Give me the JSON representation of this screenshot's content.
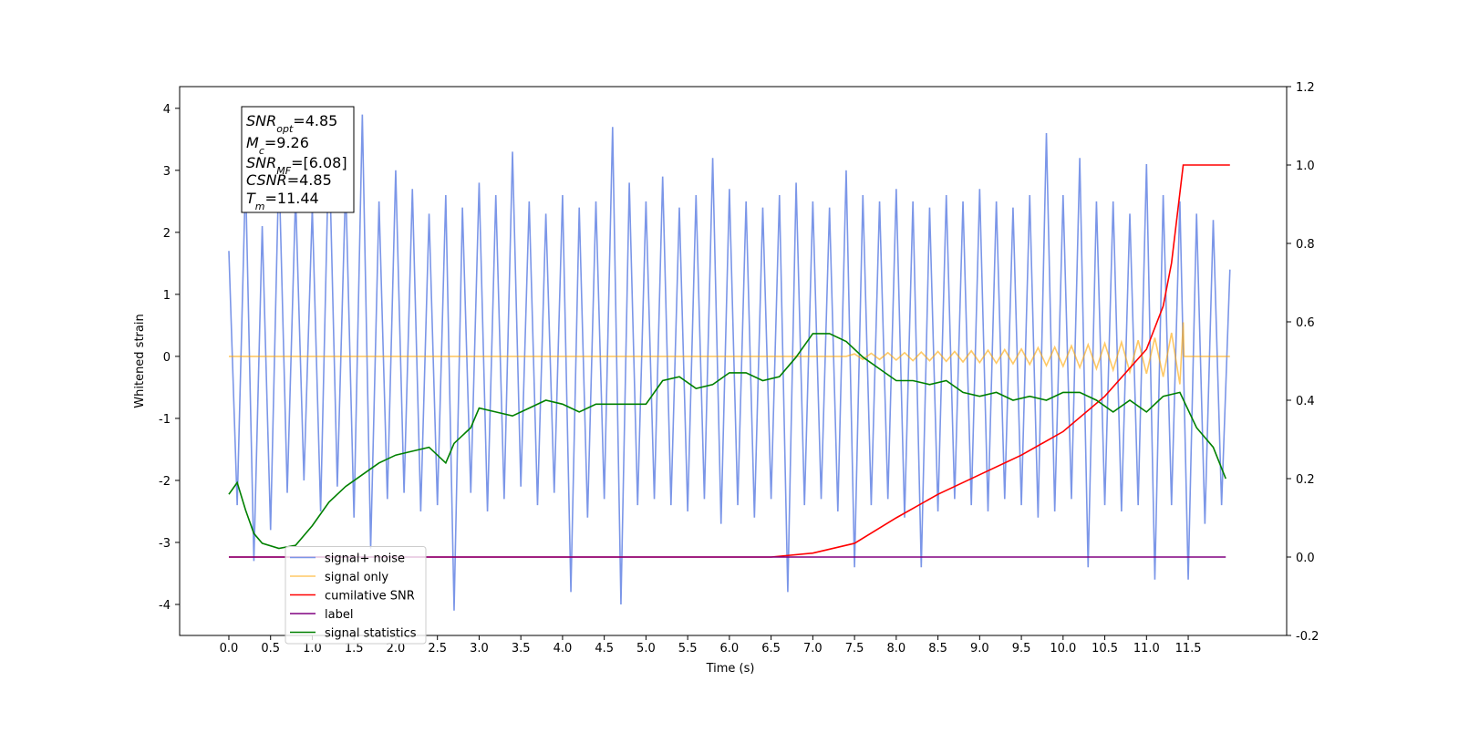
{
  "chart_data": {
    "type": "line",
    "xlabel": "Time (s)",
    "ylabel": "Whitened strain",
    "xlim": [
      -0.59,
      12.68
    ],
    "ylim": [
      -4.5,
      4.35
    ],
    "y2lim": [
      -0.2,
      1.2
    ],
    "xticks": [
      {
        "value": 0,
        "label": "0.0"
      },
      0.5,
      {
        "value": 1,
        "label": "1.0"
      },
      1.5,
      {
        "value": 2,
        "label": "2.0"
      },
      2.5,
      {
        "value": 3,
        "label": "3.0"
      },
      3.5,
      {
        "value": 4,
        "label": "4.0"
      },
      4.5,
      {
        "value": 5,
        "label": "5.0"
      },
      5.5,
      {
        "value": 6,
        "label": "6.0"
      },
      6.5,
      {
        "value": 7,
        "label": "7.0"
      },
      7.5,
      {
        "value": 8,
        "label": "8.0"
      },
      8.5,
      {
        "value": 9,
        "label": "9.0"
      },
      9.5,
      {
        "value": 10,
        "label": "10.0"
      },
      10.5,
      {
        "value": 11,
        "label": "11.0"
      },
      11.5
    ],
    "yticks": [
      -4,
      -3,
      -2,
      -1,
      0,
      1,
      2,
      3,
      4
    ],
    "y2ticks": [
      -0.2,
      {
        "value": 0,
        "label": "0.0"
      },
      0.2,
      0.4,
      0.6,
      0.8,
      {
        "value": 1,
        "label": "1.0"
      },
      1.2
    ],
    "legend_loc": "lower left",
    "annotations": [
      {
        "symbol": "SNR",
        "subscript": "opt",
        "text": "=4.85"
      },
      {
        "symbol": "M",
        "subscript": "c",
        "text": "=9.26"
      },
      {
        "symbol": "SNR",
        "subscript": "MF",
        "text": "=[6.08]"
      },
      {
        "symbol": "CSNR",
        "text": "=4.85"
      },
      {
        "symbol": "T",
        "subscript": "m",
        "text": "=11.44"
      }
    ],
    "series": [
      {
        "name": "signal+ noise",
        "color": "#7b96e8",
        "x": [
          0,
          0.1,
          0.2,
          0.3,
          0.4,
          0.5,
          0.6,
          0.7,
          0.8,
          0.9,
          1,
          1.1,
          1.2,
          1.3,
          1.4,
          1.5,
          1.6,
          1.7,
          1.8,
          1.9,
          2,
          2.1,
          2.2,
          2.3,
          2.4,
          2.5,
          2.6,
          2.7,
          2.8,
          2.9,
          3,
          3.1,
          3.2,
          3.3,
          3.4,
          3.5,
          3.6,
          3.7,
          3.8,
          3.9,
          4,
          4.1,
          4.2,
          4.3,
          4.4,
          4.5,
          4.6,
          4.7,
          4.8,
          4.9,
          5,
          5.1,
          5.2,
          5.3,
          5.4,
          5.5,
          5.6,
          5.7,
          5.8,
          5.9,
          6,
          6.1,
          6.2,
          6.3,
          6.4,
          6.5,
          6.6,
          6.7,
          6.8,
          6.9,
          7,
          7.1,
          7.2,
          7.3,
          7.4,
          7.5,
          7.6,
          7.7,
          7.8,
          7.9,
          8,
          8.1,
          8.2,
          8.3,
          8.4,
          8.5,
          8.6,
          8.7,
          8.8,
          8.9,
          9,
          9.1,
          9.2,
          9.3,
          9.4,
          9.5,
          9.6,
          9.7,
          9.8,
          9.9,
          10,
          10.1,
          10.2,
          10.3,
          10.4,
          10.5,
          10.6,
          10.7,
          10.8,
          10.9,
          11,
          11.1,
          11.2,
          11.3,
          11.4,
          11.5,
          11.6,
          11.7,
          11.8,
          11.9,
          12
        ],
        "values": [
          1.7,
          -2.4,
          2.9,
          -3.3,
          2.1,
          -2.8,
          3.1,
          -2.2,
          2.6,
          -2.0,
          2.4,
          -2.5,
          3.5,
          -2.1,
          2.8,
          -2.6,
          3.9,
          -3.1,
          2.5,
          -2.3,
          3.0,
          -2.2,
          2.7,
          -2.5,
          2.3,
          -2.4,
          2.6,
          -4.1,
          2.4,
          -2.2,
          2.8,
          -2.5,
          2.6,
          -2.3,
          3.3,
          -2.1,
          2.5,
          -2.4,
          2.3,
          -2.2,
          2.6,
          -3.8,
          2.4,
          -2.6,
          2.5,
          -2.3,
          3.7,
          -4.0,
          2.8,
          -2.4,
          2.5,
          -2.3,
          2.9,
          -2.4,
          2.4,
          -2.5,
          2.6,
          -2.3,
          3.2,
          -2.7,
          2.7,
          -2.4,
          2.5,
          -2.6,
          2.4,
          -2.3,
          2.6,
          -3.8,
          2.8,
          -2.4,
          2.5,
          -2.3,
          2.4,
          -2.5,
          3.0,
          -3.4,
          2.6,
          -2.4,
          2.5,
          -2.3,
          2.7,
          -2.6,
          2.5,
          -3.4,
          2.4,
          -2.5,
          2.6,
          -2.3,
          2.5,
          -2.4,
          2.7,
          -2.5,
          2.5,
          -2.3,
          2.4,
          -2.4,
          2.6,
          -2.6,
          3.6,
          -2.5,
          2.6,
          -2.3,
          3.2,
          -3.4,
          2.5,
          -2.4,
          2.5,
          -2.5,
          2.3,
          -2.4,
          3.1,
          -3.6,
          2.6,
          -2.4,
          2.5,
          -3.6,
          2.3,
          -2.7,
          2.2,
          -2.4,
          1.4
        ]
      },
      {
        "name": "signal only",
        "color": "#ffa500",
        "x": [
          0,
          7.4,
          7.5,
          7.6,
          7.7,
          7.8,
          7.9,
          8,
          8.1,
          8.2,
          8.3,
          8.4,
          8.5,
          8.6,
          8.7,
          8.8,
          8.9,
          9,
          9.1,
          9.2,
          9.3,
          9.4,
          9.5,
          9.6,
          9.7,
          9.8,
          9.9,
          10,
          10.1,
          10.2,
          10.3,
          10.4,
          10.5,
          10.6,
          10.7,
          10.8,
          10.9,
          11,
          11.1,
          11.2,
          11.3,
          11.4,
          11.44,
          11.45,
          12
        ],
        "values": [
          0,
          0,
          0.04,
          -0.05,
          0.05,
          -0.05,
          0.06,
          -0.06,
          0.06,
          -0.07,
          0.07,
          -0.07,
          0.08,
          -0.08,
          0.08,
          -0.09,
          0.09,
          -0.1,
          0.1,
          -0.11,
          0.11,
          -0.12,
          0.12,
          -0.13,
          0.14,
          -0.15,
          0.15,
          -0.16,
          0.17,
          -0.18,
          0.19,
          -0.2,
          0.21,
          -0.22,
          0.23,
          -0.25,
          0.26,
          -0.28,
          0.3,
          -0.33,
          0.38,
          -0.45,
          0.55,
          0,
          0
        ]
      },
      {
        "name": "cumilative SNR",
        "color": "#ff0000",
        "axis": "y2",
        "x": [
          0,
          6.5,
          7,
          7.5,
          8,
          8.5,
          9,
          9.5,
          10,
          10.5,
          11,
          11.2,
          11.3,
          11.44,
          12
        ],
        "values": [
          0,
          0,
          0.01,
          0.035,
          0.1,
          0.16,
          0.21,
          0.26,
          0.32,
          0.41,
          0.53,
          0.64,
          0.75,
          1.0,
          1.0
        ]
      },
      {
        "name": "label",
        "color": "#800080",
        "axis": "y2",
        "x": [
          0,
          11.95
        ],
        "values": [
          0,
          0
        ]
      },
      {
        "name": "signal statistics",
        "color": "#008000",
        "axis": "y2",
        "x": [
          0,
          0.1,
          0.2,
          0.3,
          0.4,
          0.6,
          0.8,
          1,
          1.2,
          1.4,
          1.6,
          1.8,
          2,
          2.2,
          2.4,
          2.6,
          2.7,
          2.9,
          3,
          3.2,
          3.4,
          3.6,
          3.8,
          4,
          4.2,
          4.4,
          4.6,
          4.8,
          5,
          5.2,
          5.4,
          5.6,
          5.8,
          6,
          6.2,
          6.4,
          6.6,
          6.8,
          7,
          7.2,
          7.4,
          7.6,
          7.8,
          8,
          8.2,
          8.4,
          8.6,
          8.8,
          9,
          9.2,
          9.4,
          9.6,
          9.8,
          10,
          10.2,
          10.4,
          10.6,
          10.8,
          11,
          11.2,
          11.4,
          11.6,
          11.8,
          11.95
        ],
        "values": [
          0.16,
          0.19,
          0.12,
          0.06,
          0.035,
          0.022,
          0.03,
          0.08,
          0.14,
          0.18,
          0.21,
          0.24,
          0.26,
          0.27,
          0.28,
          0.24,
          0.29,
          0.33,
          0.38,
          0.37,
          0.36,
          0.38,
          0.4,
          0.39,
          0.37,
          0.39,
          0.39,
          0.39,
          0.39,
          0.45,
          0.46,
          0.43,
          0.44,
          0.47,
          0.47,
          0.45,
          0.46,
          0.51,
          0.57,
          0.57,
          0.55,
          0.51,
          0.48,
          0.45,
          0.45,
          0.44,
          0.45,
          0.42,
          0.41,
          0.42,
          0.4,
          0.41,
          0.4,
          0.42,
          0.42,
          0.4,
          0.37,
          0.4,
          0.37,
          0.41,
          0.42,
          0.33,
          0.28,
          0.2
        ]
      }
    ]
  }
}
